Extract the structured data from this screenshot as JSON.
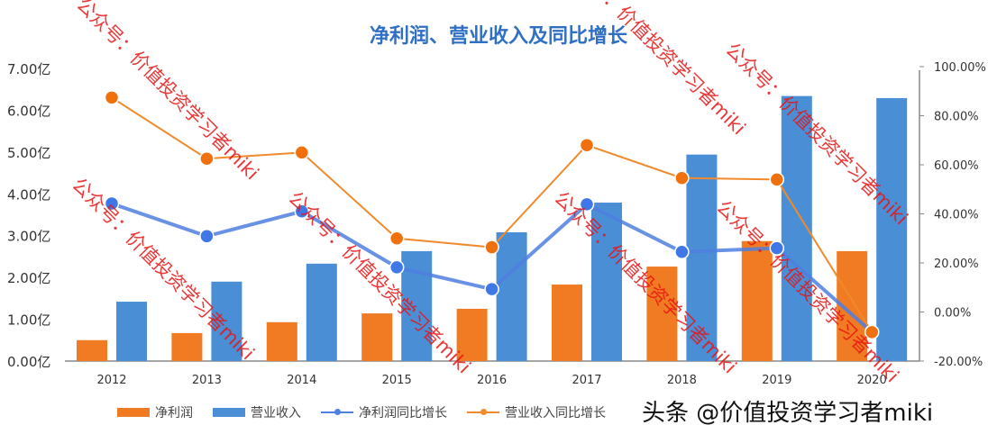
{
  "chart_data": {
    "type": "bar+line",
    "title": "净利润、营业收入及同比增长",
    "categories": [
      "2012",
      "2013",
      "2014",
      "2015",
      "2016",
      "2017",
      "2018",
      "2019",
      "2020"
    ],
    "left_axis": {
      "ticks": [
        "0.00亿",
        "1.00亿",
        "2.00亿",
        "3.00亿",
        "4.00亿",
        "5.00亿",
        "6.00亿",
        "7.00亿"
      ],
      "range": [
        0,
        7
      ],
      "unit": "亿"
    },
    "right_axis": {
      "ticks": [
        "-20.00%",
        "0.00%",
        "20.00%",
        "40.00%",
        "60.00%",
        "80.00%",
        "100.00%"
      ],
      "range": [
        -20,
        100
      ],
      "unit": "%"
    },
    "series": [
      {
        "name": "净利润",
        "type": "bar",
        "axis": "left",
        "color": "#f07b22",
        "values": [
          0.5,
          0.67,
          0.93,
          1.14,
          1.25,
          1.83,
          2.26,
          2.87,
          2.63
        ]
      },
      {
        "name": "营业收入",
        "type": "bar",
        "axis": "left",
        "color": "#4a8fd6",
        "values": [
          1.42,
          1.9,
          2.33,
          2.63,
          3.08,
          3.79,
          4.94,
          6.34,
          6.29
        ]
      },
      {
        "name": "净利润同比增长",
        "type": "line",
        "axis": "right",
        "color": "#4f7fe0",
        "values": [
          44.2,
          30.9,
          41.0,
          18.2,
          9.3,
          43.9,
          24.5,
          26.0,
          -8.2
        ]
      },
      {
        "name": "营业收入同比增长",
        "type": "line",
        "axis": "right",
        "color": "#f08a2a",
        "values": [
          87.4,
          62.5,
          65.0,
          30.0,
          26.4,
          68.0,
          54.6,
          54.0,
          -8.2
        ]
      }
    ],
    "legend": "bottom",
    "grid": false
  },
  "watermarks": {
    "diagonal": "公众号：价值投资学习者miki",
    "footer": "头条 @价值投资学习者miki"
  }
}
